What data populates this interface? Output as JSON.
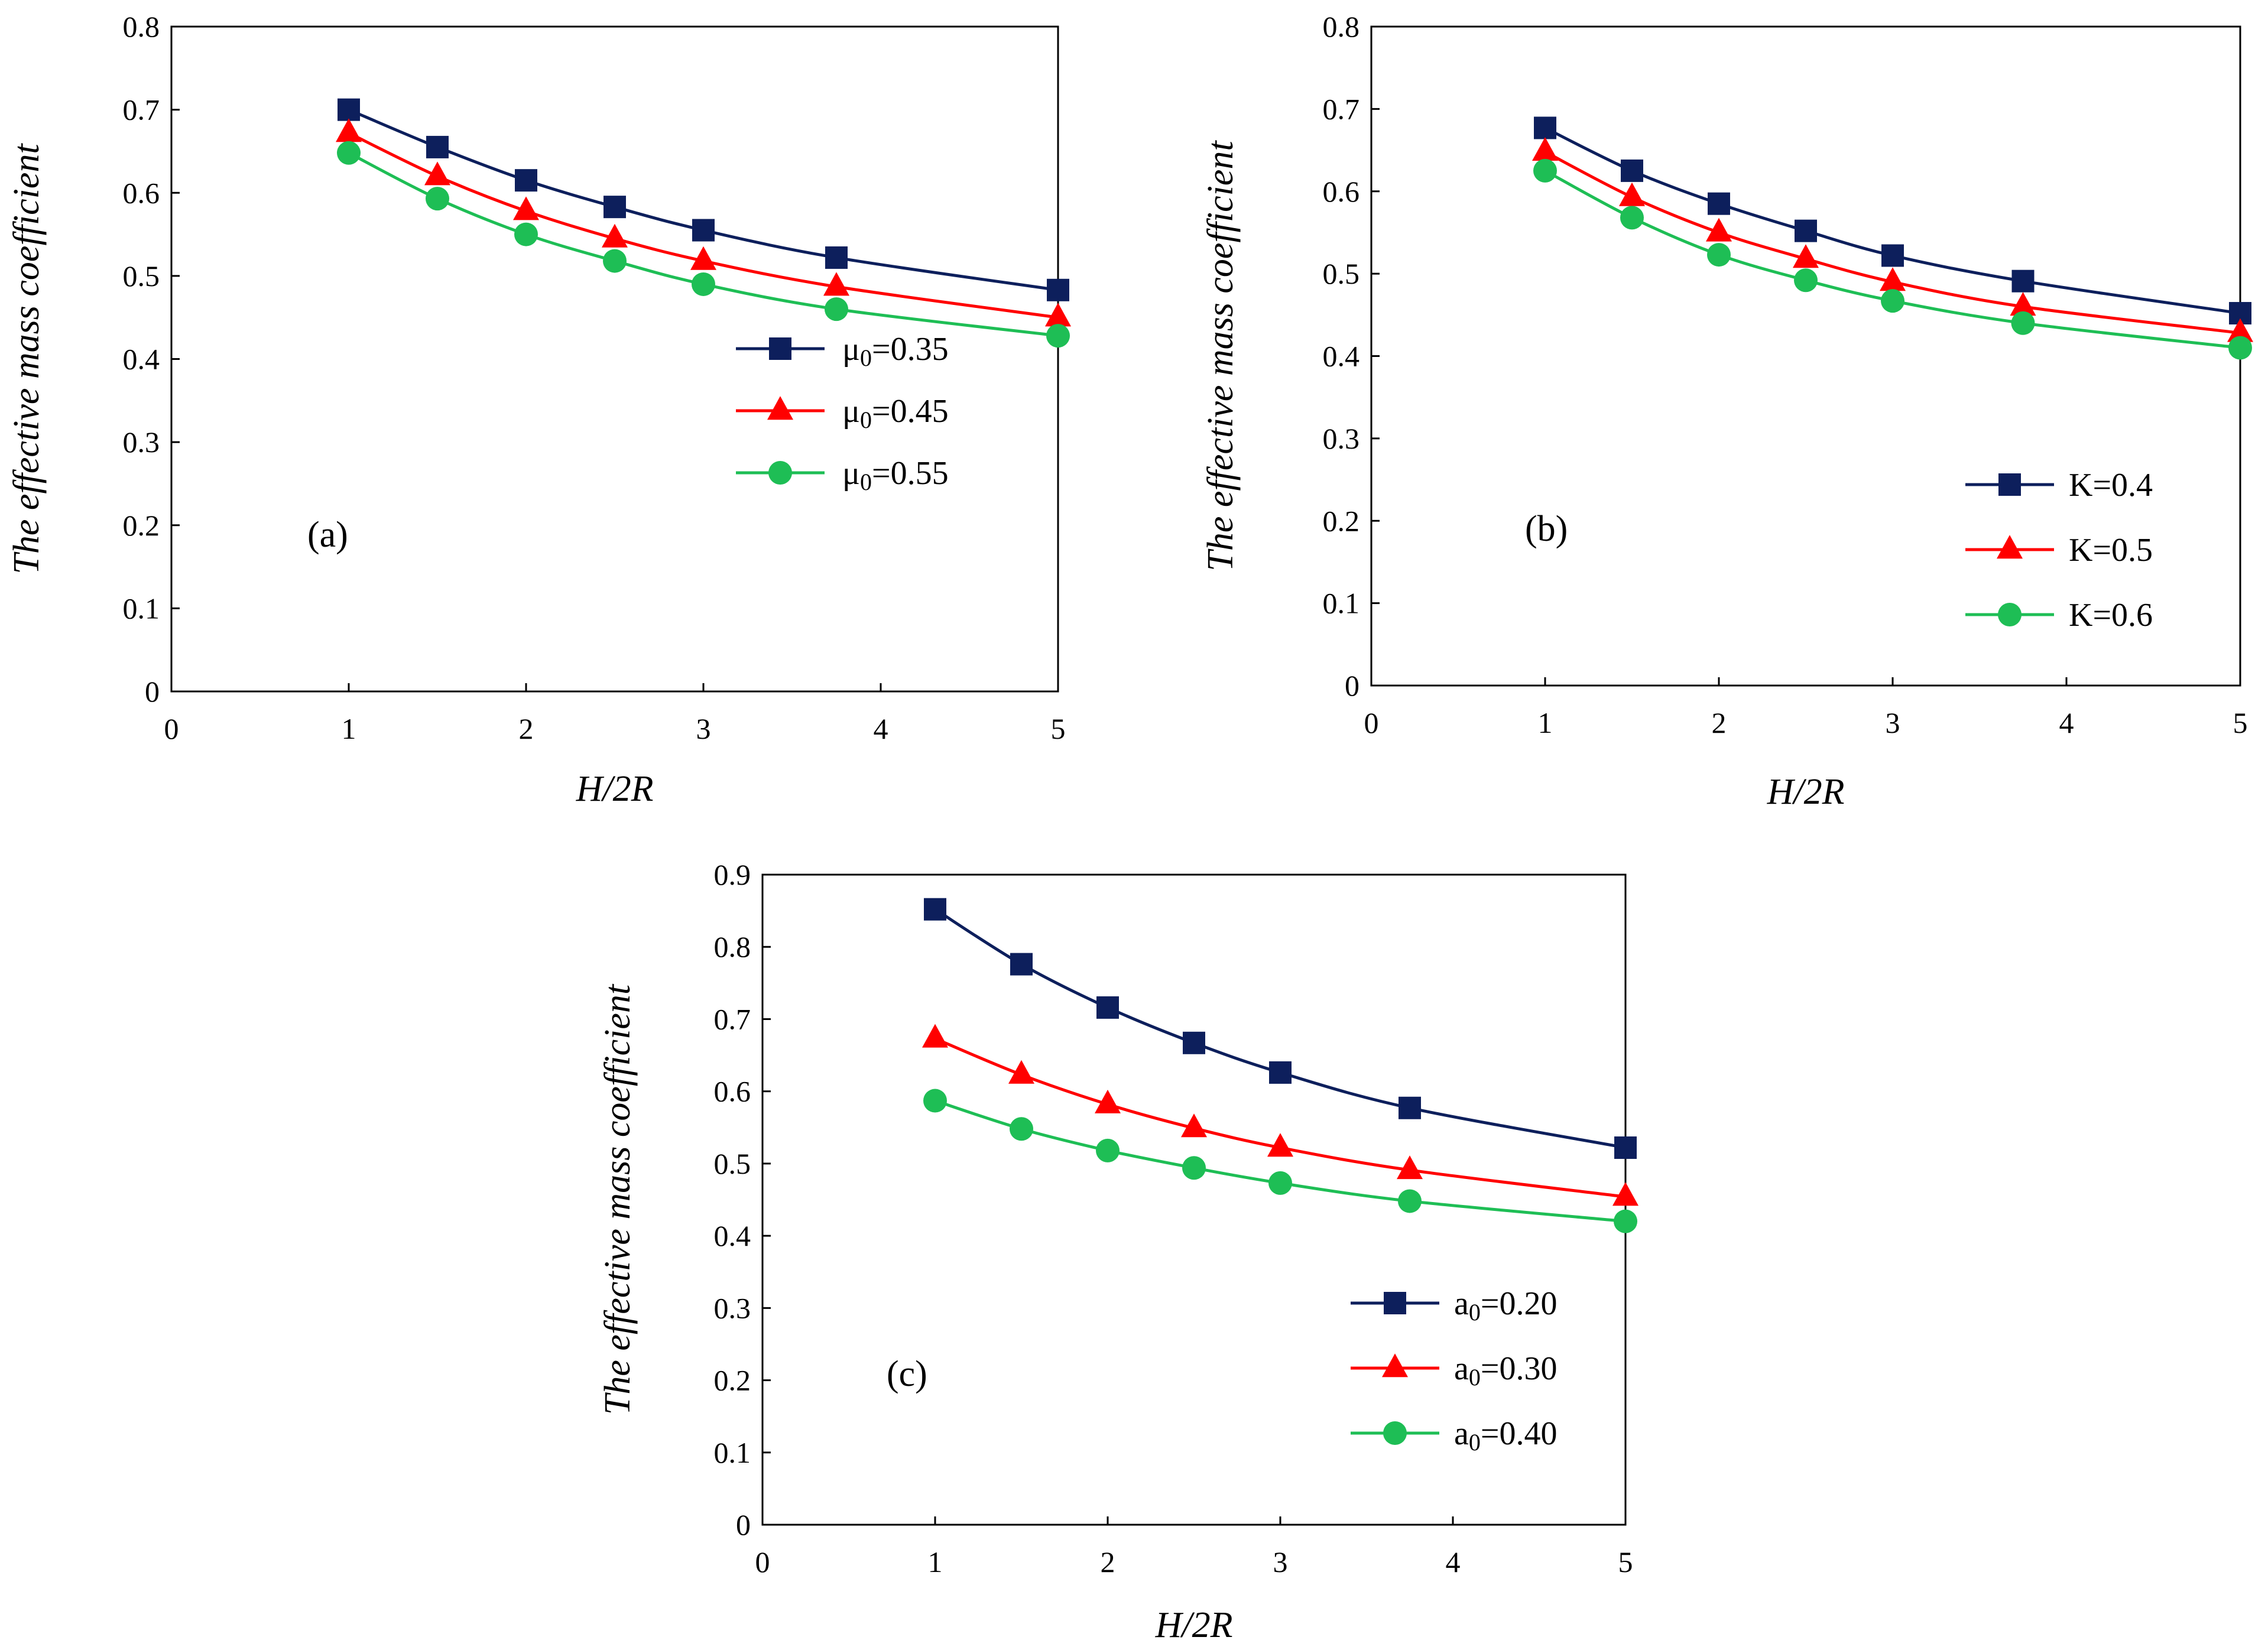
{
  "chart_data": [
    {
      "type": "line",
      "panel_label": "(a)",
      "xlabel": "H/2R",
      "ylabel": "The effective mass coefficient",
      "xlim": [
        0,
        5
      ],
      "ylim": [
        0,
        0.8
      ],
      "xticks": [
        "0",
        "1",
        "2",
        "3",
        "4",
        "5"
      ],
      "yticks": [
        "0",
        "0.1",
        "0.2",
        "0.3",
        "0.4",
        "0.5",
        "0.6",
        "0.7",
        "0.8"
      ],
      "legend_position": "right",
      "x": [
        1,
        1.5,
        2,
        2.5,
        3,
        3.75,
        5
      ],
      "series": [
        {
          "name": "μ₀=0.35",
          "label_main": "μ",
          "label_sub": "0",
          "label_rest": "=0.35",
          "color": "#0d1f5c",
          "marker": "square",
          "values": [
            0.7,
            0.655,
            0.615,
            0.583,
            0.555,
            0.522,
            0.483
          ]
        },
        {
          "name": "μ₀=0.45",
          "label_main": "μ",
          "label_sub": "0",
          "label_rest": "=0.45",
          "color": "#ff0000",
          "marker": "triangle",
          "values": [
            0.672,
            0.62,
            0.578,
            0.545,
            0.518,
            0.487,
            0.45
          ]
        },
        {
          "name": "μ₀=0.55",
          "label_main": "μ",
          "label_sub": "0",
          "label_rest": "=0.55",
          "color": "#1ebe55",
          "marker": "circle",
          "values": [
            0.648,
            0.593,
            0.55,
            0.518,
            0.49,
            0.46,
            0.428
          ]
        }
      ]
    },
    {
      "type": "line",
      "panel_label": "(b)",
      "xlabel": "H/2R",
      "ylabel": "The effective mass coefficient",
      "xlim": [
        0,
        5
      ],
      "ylim": [
        0,
        0.8
      ],
      "xticks": [
        "0",
        "1",
        "2",
        "3",
        "4",
        "5"
      ],
      "yticks": [
        "0",
        "0.1",
        "0.2",
        "0.3",
        "0.4",
        "0.5",
        "0.6",
        "0.7",
        "0.8"
      ],
      "legend_position": "right",
      "x": [
        1,
        1.5,
        2,
        2.5,
        3,
        3.75,
        5
      ],
      "series": [
        {
          "name": "K=0.4",
          "label_main": "K",
          "label_sub": "",
          "label_rest": "=0.4",
          "color": "#0d1f5c",
          "marker": "square",
          "values": [
            0.677,
            0.625,
            0.585,
            0.552,
            0.522,
            0.491,
            0.452
          ]
        },
        {
          "name": "K=0.5",
          "label_main": "K",
          "label_sub": "",
          "label_rest": "=0.5",
          "color": "#ff0000",
          "marker": "triangle",
          "values": [
            0.648,
            0.593,
            0.55,
            0.518,
            0.49,
            0.46,
            0.428
          ]
        },
        {
          "name": "K=0.6",
          "label_main": "K",
          "label_sub": "",
          "label_rest": "=0.6",
          "color": "#1ebe55",
          "marker": "circle",
          "values": [
            0.625,
            0.568,
            0.523,
            0.492,
            0.467,
            0.44,
            0.41
          ]
        }
      ]
    },
    {
      "type": "line",
      "panel_label": "(c)",
      "xlabel": "H/2R",
      "ylabel": "The effective mass coefficient",
      "xlim": [
        0,
        5
      ],
      "ylim": [
        0,
        0.9
      ],
      "xticks": [
        "0",
        "1",
        "2",
        "3",
        "4",
        "5"
      ],
      "yticks": [
        "0",
        "0.1",
        "0.2",
        "0.3",
        "0.4",
        "0.5",
        "0.6",
        "0.7",
        "0.8",
        "0.9"
      ],
      "legend_position": "right",
      "x": [
        1,
        1.5,
        2,
        2.5,
        3,
        3.75,
        5
      ],
      "series": [
        {
          "name": "a₀=0.20",
          "label_main": "a",
          "label_sub": "0",
          "label_rest": "=0.20",
          "color": "#0d1f5c",
          "marker": "square",
          "values": [
            0.852,
            0.776,
            0.716,
            0.667,
            0.626,
            0.577,
            0.522
          ]
        },
        {
          "name": "a₀=0.30",
          "label_main": "a",
          "label_sub": "0",
          "label_rest": "=0.30",
          "color": "#ff0000",
          "marker": "triangle",
          "values": [
            0.673,
            0.623,
            0.582,
            0.549,
            0.522,
            0.491,
            0.454
          ]
        },
        {
          "name": "a₀=0.40",
          "label_main": "a",
          "label_sub": "0",
          "label_rest": "=0.40",
          "color": "#1ebe55",
          "marker": "circle",
          "values": [
            0.587,
            0.548,
            0.518,
            0.494,
            0.473,
            0.448,
            0.42
          ]
        }
      ]
    }
  ]
}
